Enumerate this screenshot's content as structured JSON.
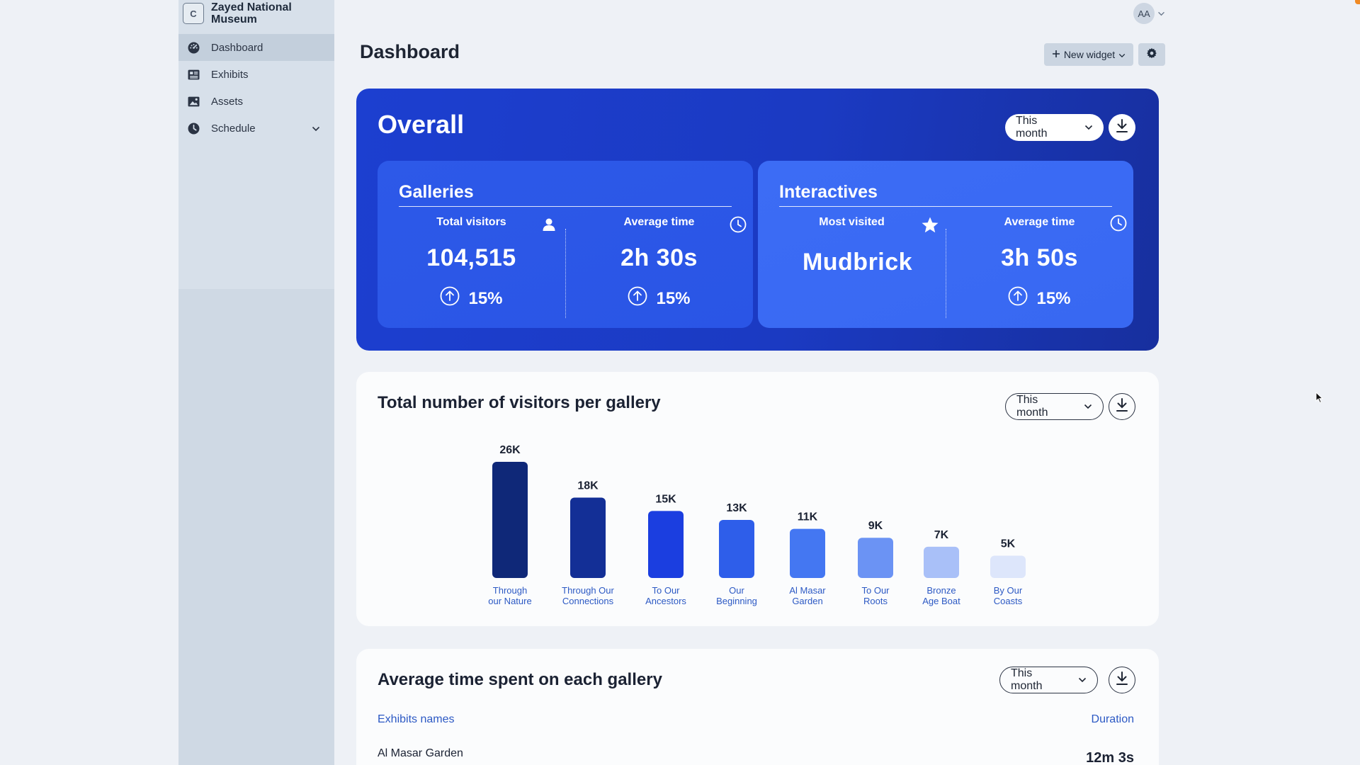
{
  "brand": {
    "logo_letter": "C",
    "name": "Zayed National Museum"
  },
  "sidebar": {
    "items": [
      {
        "label": "Dashboard",
        "icon": "gauge-icon",
        "active": true
      },
      {
        "label": "Exhibits",
        "icon": "exhibits-icon",
        "active": false
      },
      {
        "label": "Assets",
        "icon": "image-icon",
        "active": false
      },
      {
        "label": "Schedule",
        "icon": "clock-icon",
        "active": false,
        "expandable": true
      }
    ]
  },
  "header": {
    "avatar_initials": "AA",
    "page_title": "Dashboard",
    "new_widget_label": "New widget"
  },
  "overall": {
    "title": "Overall",
    "period": "This month",
    "galleries": {
      "title": "Galleries",
      "metrics": [
        {
          "label": "Total visitors",
          "value": "104,515",
          "change": "15%",
          "icon": "person-icon"
        },
        {
          "label": "Average time",
          "value": "2h 30s",
          "change": "15%",
          "icon": "clock-icon"
        }
      ]
    },
    "interactives": {
      "title": "Interactives",
      "metrics": [
        {
          "label": "Most visited",
          "value": "Mudbrick",
          "icon": "star-icon"
        },
        {
          "label": "Average time",
          "value": "3h 50s",
          "change": "15%",
          "icon": "clock-icon"
        }
      ]
    }
  },
  "visitors_card": {
    "title": "Total number of visitors per gallery",
    "period": "This month"
  },
  "chart_data": {
    "type": "bar",
    "title": "Total number of visitors per gallery",
    "categories": [
      [
        "Through",
        "our Nature"
      ],
      [
        "Through Our",
        "Connections"
      ],
      [
        "To Our",
        "Ancestors"
      ],
      [
        "Our",
        "Beginning"
      ],
      [
        "Al  Masar",
        "Garden"
      ],
      [
        "To Our",
        "Roots"
      ],
      [
        "Bronze",
        "Age Boat"
      ],
      [
        "By Our",
        "Coasts"
      ]
    ],
    "values": [
      26,
      18,
      15,
      13,
      11,
      9,
      7,
      5
    ],
    "value_labels": [
      "26K",
      "18K",
      "15K",
      "13K",
      "11K",
      "9K",
      "7K",
      "5K"
    ],
    "unit": "K",
    "bar_colors": [
      "#0f2878",
      "#132f96",
      "#1b3ee0",
      "#2e5eea",
      "#4477f2",
      "#6b93f4",
      "#a9c0f8",
      "#dde6fb"
    ],
    "grid": false,
    "legend": "none"
  },
  "avg_time_card": {
    "title": "Average time spent on each gallery",
    "period": "This month",
    "columns": [
      "Exhibits names",
      "Duration"
    ],
    "rows": [
      {
        "name": "Al Masar Garden",
        "duration": "12m 3s"
      }
    ]
  }
}
